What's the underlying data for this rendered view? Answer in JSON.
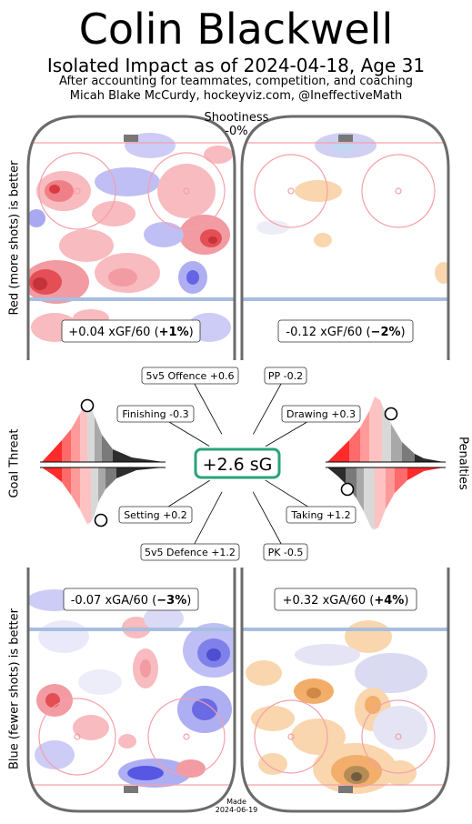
{
  "header": {
    "title": "Colin Blackwell",
    "subtitle": "Isolated Impact as of 2024-04-18, Age 31",
    "byline1": "After accounting for teammates, competition, and coaching",
    "byline2": "Micah Blake McCurdy, hockeyviz.com, @IneffectiveMath"
  },
  "shootiness": {
    "label": "Shootiness",
    "value": "-0%"
  },
  "side_labels": {
    "top": "Red (more shots) is better",
    "middle_left": "Goal Threat",
    "middle_right": "Penalties",
    "bottom": "Blue (fewer shots) is better"
  },
  "footer": {
    "made_label": "Made",
    "made_date": "2024-06-19"
  },
  "colors": {
    "red": "#e8141c",
    "blue": "#3a3ae0",
    "orange": "#f0a050",
    "rink_line_red": "#f4a0a8",
    "rink_line_blue": "#a8bee0",
    "board": "#6b6b6b",
    "green_box": "#2aa37a"
  },
  "chart_data": {
    "type": "other",
    "total": {
      "label": "+2.6 sG",
      "value": 2.6
    },
    "rink_boxes": [
      {
        "id": "5v5-offence",
        "label": "+0.04 xGF/60 (",
        "pct": "+1%",
        "close": ")",
        "value": 0.04,
        "percent": 1
      },
      {
        "id": "pp",
        "label": "-0.12 xGF/60 (",
        "pct": "−2%",
        "close": ")",
        "value": -0.12,
        "percent": -2
      },
      {
        "id": "5v5-defence",
        "label": "-0.07 xGA/60 (",
        "pct": "−3%",
        "close": ")",
        "value": -0.07,
        "percent": -3
      },
      {
        "id": "pk",
        "label": "+0.32 xGA/60 (",
        "pct": "+4%",
        "close": ")",
        "value": 0.32,
        "percent": 4
      }
    ],
    "spokes": [
      {
        "id": "5v5-offence",
        "label": "5v5 Offence +0.6",
        "value": 0.6
      },
      {
        "id": "pp",
        "label": "PP -0.2",
        "value": -0.2
      },
      {
        "id": "finishing",
        "label": "Finishing -0.3",
        "value": -0.3
      },
      {
        "id": "drawing",
        "label": "Drawing +0.3",
        "value": 0.3
      },
      {
        "id": "setting",
        "label": "Setting +0.2",
        "value": 0.2
      },
      {
        "id": "taking",
        "label": "Taking +1.2",
        "value": 1.2
      },
      {
        "id": "5v5-defence",
        "label": "5v5 Defence +1.2",
        "value": 1.2
      },
      {
        "id": "pk",
        "label": "PK -0.5",
        "value": -0.5
      }
    ]
  }
}
